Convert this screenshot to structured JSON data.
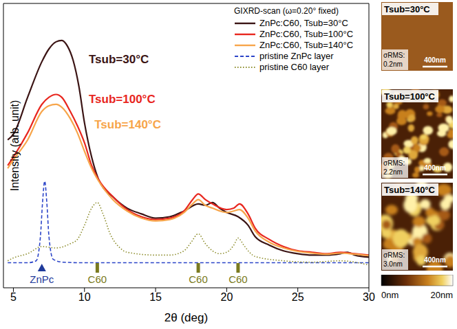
{
  "chart_data": {
    "type": "line",
    "xlabel": "2θ (deg)",
    "ylabel": "Intensity (arb. unit)",
    "legend_title": "GIXRD-scan (ω=0.20° fixed)",
    "legend": "top-right",
    "tick_labels": "x",
    "grid": false,
    "xlim": [
      4.3,
      30
    ],
    "xticks": [
      5,
      10,
      15,
      20,
      25,
      30
    ],
    "ylim": [
      0,
      100
    ],
    "yticks": [
      16,
      36,
      56,
      76
    ],
    "series": [
      {
        "name": "ZnPc:C60, Tsub=30°C",
        "color": "#3b1414",
        "line_style": "solid",
        "x": [
          4.6,
          5,
          6,
          7,
          7.5,
          8,
          8.4,
          8.8,
          9.2,
          9.6,
          10,
          10.5,
          11,
          12,
          13,
          14,
          15,
          16,
          17,
          18,
          18.5,
          19,
          19.5,
          20,
          20.8,
          21.5,
          22,
          23,
          24,
          25,
          26,
          27,
          28,
          28.5,
          29,
          30
        ],
        "values": [
          52,
          54,
          67,
          79.5,
          84,
          86.5,
          87,
          85,
          80,
          71,
          58,
          46,
          38,
          32,
          28,
          26,
          24.5,
          25,
          27,
          29.5,
          29,
          30,
          28,
          26.5,
          25,
          22,
          18,
          15,
          13,
          12,
          11.5,
          11.5,
          12,
          12.5,
          11.5,
          10.8
        ]
      },
      {
        "name": "ZnPc:C60, Tsub=100°C",
        "color": "#e8261e",
        "line_style": "solid",
        "x": [
          4.6,
          5,
          6,
          7,
          7.5,
          8,
          8.4,
          9,
          9.5,
          10,
          10.5,
          11,
          12,
          13,
          14,
          15,
          16,
          17,
          17.6,
          18,
          18.5,
          19,
          20,
          20.5,
          20.9,
          21.5,
          22,
          23,
          24,
          25,
          26,
          27,
          28,
          29,
          30
        ],
        "values": [
          43,
          46,
          54.5,
          64.5,
          67,
          68,
          67,
          62,
          57,
          51,
          43,
          38,
          32,
          27.5,
          25,
          24,
          24.5,
          27,
          31,
          33,
          31,
          29.5,
          27.5,
          28,
          29.5,
          26,
          21,
          17,
          14.5,
          13,
          12.5,
          12,
          12.5,
          12,
          11.5
        ]
      },
      {
        "name": "ZnPc:C60, Tsub=140°C",
        "color": "#f7a54a",
        "line_style": "solid",
        "x": [
          4.6,
          5,
          6,
          7,
          7.5,
          8,
          8.4,
          9,
          9.5,
          10,
          10.5,
          11,
          12,
          13,
          14,
          15,
          16,
          17,
          17.6,
          18,
          18.5,
          19,
          20,
          20.5,
          20.9,
          21.5,
          22,
          23,
          24,
          25,
          26,
          27,
          28,
          29,
          30
        ],
        "values": [
          42,
          45,
          52,
          62,
          64,
          64.5,
          63.5,
          59.5,
          54.5,
          48,
          42,
          37.5,
          31,
          27,
          24.5,
          23.5,
          24,
          26.5,
          29.5,
          31,
          29,
          28,
          26.5,
          27,
          27.5,
          24.5,
          20,
          16,
          14,
          12.8,
          12.2,
          11.8,
          12.2,
          11.8,
          11.3
        ]
      },
      {
        "name": "pristine ZnPc layer",
        "color": "#2b44c8",
        "line_style": "dashed",
        "x": [
          4.6,
          6,
          6.6,
          6.9,
          7.05,
          7.2,
          7.35,
          7.5,
          7.8,
          8.5,
          10,
          15,
          20,
          25,
          30
        ],
        "values": [
          8.8,
          8.8,
          9.5,
          18,
          30,
          37.5,
          30,
          18,
          10,
          9,
          8.8,
          8.8,
          8.8,
          8.8,
          8.8
        ]
      },
      {
        "name": "pristine C60 layer",
        "color": "#8b8b2a",
        "line_style": "dotted",
        "x": [
          4.6,
          5,
          6,
          7,
          8,
          9,
          9.5,
          10,
          10.5,
          10.9,
          11.3,
          11.8,
          12.5,
          13,
          15,
          16,
          17,
          17.5,
          18,
          18.5,
          19,
          19.5,
          20,
          20.5,
          20.8,
          21.2,
          21.6,
          22,
          24,
          26,
          28,
          30
        ],
        "values": [
          9.5,
          10.5,
          12,
          14.5,
          14,
          15.5,
          17,
          22,
          28,
          30,
          26,
          19,
          14,
          12.5,
          11.5,
          11.5,
          13,
          16,
          19,
          15.5,
          13,
          12,
          12.5,
          15,
          17.5,
          15,
          12.5,
          11,
          9.5,
          9,
          9.5,
          8
        ]
      }
    ],
    "annotations": [
      {
        "text": "Tsub=30°C",
        "x": 10.3,
        "y": 79,
        "color": "#3b1414"
      },
      {
        "text": "Tsub=100°C",
        "x": 10.3,
        "y": 65,
        "color": "#e8261e"
      },
      {
        "text": "Tsub=140°C",
        "x": 10.7,
        "y": 56,
        "color": "#f7a54a"
      }
    ],
    "markers": [
      {
        "label": "ZnPc",
        "x": 7.0,
        "y": 7,
        "marker": "triangle",
        "color": "#1f3a9a"
      },
      {
        "label": "C60",
        "x": 10.9,
        "y": 7,
        "marker": "bar",
        "color": "#7a7a20"
      },
      {
        "label": "C60",
        "x": 18.0,
        "y": 7,
        "marker": "bar",
        "color": "#7a7a20"
      },
      {
        "label": "C60",
        "x": 20.8,
        "y": 7,
        "marker": "bar",
        "color": "#7a7a20"
      }
    ]
  },
  "afm_images": [
    {
      "title": "Tsub=30°C",
      "rms_label": "σRMS:",
      "rms": "0.2nm",
      "scale_bar": "400nm"
    },
    {
      "title": "Tsub=100°C",
      "rms_label": "σRMS:",
      "rms": "2.2nm",
      "scale_bar": "400nm"
    },
    {
      "title": "Tsub=140°C",
      "rms_label": "σRMS:",
      "rms": "3.0nm",
      "scale_bar": "400nm"
    }
  ],
  "colorbar": {
    "range": [
      0,
      20
    ],
    "ticks": [
      {
        "value": 0,
        "label": "0nm"
      },
      {
        "value": 20,
        "label": "20nm"
      }
    ]
  }
}
